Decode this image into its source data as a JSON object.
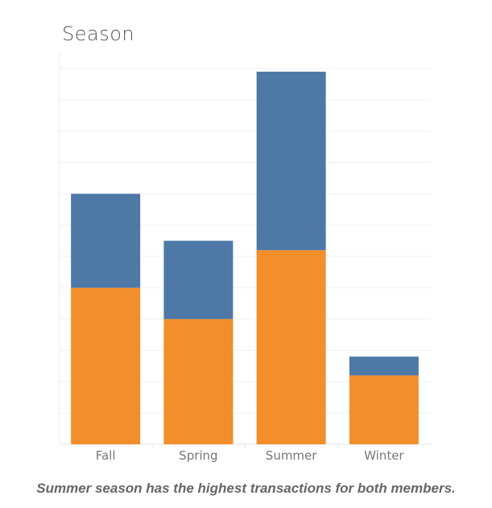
{
  "chart_data": {
    "type": "bar",
    "stacked": true,
    "title": "Season",
    "xlabel": "",
    "ylabel": "",
    "categories": [
      "Fall",
      "Spring",
      "Summer",
      "Winter"
    ],
    "series": [
      {
        "values": [
          5,
          4,
          6.2,
          2.2
        ],
        "color": "#F28E2B"
      },
      {
        "values": [
          3,
          2.5,
          5.7,
          0.6
        ],
        "color": "#4E79A7"
      }
    ],
    "ylim": [
      0,
      12
    ],
    "grid": true,
    "y_tick_labels_shown": false,
    "legend": "none"
  },
  "caption": "Summer season has the highest transactions for both members."
}
